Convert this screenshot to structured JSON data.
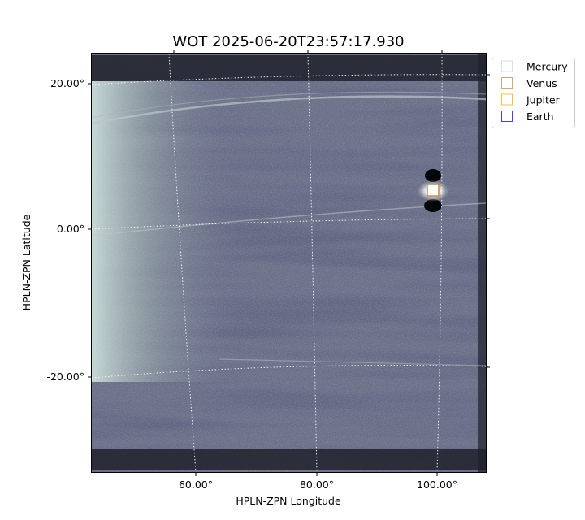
{
  "chart_data": {
    "type": "image",
    "title": "WOT 2025-06-20T23:57:17.930",
    "xlabel": "HPLN-ZPN Longitude",
    "ylabel": "HPLN-ZPN Latitude",
    "x_ticks": [
      {
        "value": 60,
        "label": "60.00°"
      },
      {
        "value": 80,
        "label": "80.00°"
      },
      {
        "value": 100,
        "label": "100.00°"
      }
    ],
    "y_ticks": [
      {
        "value": 20,
        "label": "20.00°"
      },
      {
        "value": 0,
        "label": "0.00°"
      },
      {
        "value": -20,
        "label": "-20.00°"
      }
    ],
    "grid": true,
    "colormap": "bone-like grayscale with blue tint",
    "legend_position": "outside-top-right",
    "legend": [
      {
        "name": "Mercury",
        "color": "#d3d3d3"
      },
      {
        "name": "Venus",
        "color": "#cd853f"
      },
      {
        "name": "Jupiter",
        "color": "#ffa500"
      },
      {
        "name": "Earth",
        "color": "#0000ff"
      }
    ],
    "markers": [
      {
        "name": "Venus",
        "lon": 99,
        "lat": 5.5,
        "color": "#cd853f"
      }
    ]
  }
}
